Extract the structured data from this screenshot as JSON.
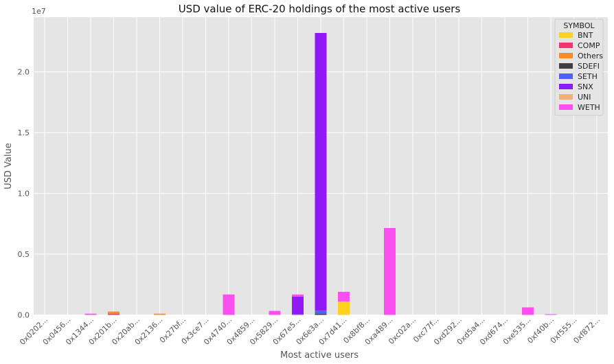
{
  "chart_data": {
    "type": "bar",
    "stacked": true,
    "title": "USD value of ERC-20 holdings of the most active users",
    "xlabel": "Most active users",
    "ylabel": "USD Value",
    "y_scale_label": "1e7",
    "ylim": [
      0,
      24500000
    ],
    "yticks": [
      0,
      5000000,
      10000000,
      15000000,
      20000000
    ],
    "ytick_labels": [
      "0.0",
      "0.5",
      "1.0",
      "1.5",
      "2.0"
    ],
    "grid": true,
    "legend_title": "SYMBOL",
    "legend_position": "top-right",
    "categories": [
      "0x0202...",
      "0x0456...",
      "0x1344...",
      "0x201b...",
      "0x20ab...",
      "0x2136...",
      "0x27bf...",
      "0x3ce7...",
      "0x4740...",
      "0x4859...",
      "0x5829...",
      "0x67e5...",
      "0x6e3a...",
      "0x7d41...",
      "0x8bf8...",
      "0xa489...",
      "0xc02a...",
      "0xc77f...",
      "0xd292...",
      "0xd5a4...",
      "0xd674...",
      "0xe535...",
      "0xf40b...",
      "0xf555...",
      "0xf872..."
    ],
    "series": [
      {
        "name": "BNT",
        "color": "#ffd21f",
        "values": [
          0,
          0,
          0,
          0,
          0,
          0,
          0,
          0,
          0,
          0,
          0,
          0,
          0,
          1100000,
          0,
          0,
          0,
          0,
          0,
          0,
          0,
          0,
          0,
          0,
          0
        ]
      },
      {
        "name": "COMP",
        "color": "#f5316e",
        "values": [
          0,
          0,
          0,
          100000,
          0,
          0,
          0,
          0,
          0,
          0,
          0,
          0,
          0,
          0,
          0,
          0,
          0,
          0,
          0,
          0,
          0,
          0,
          0,
          0,
          0
        ]
      },
      {
        "name": "Others",
        "color": "#fb8b24",
        "values": [
          0,
          0,
          0,
          150000,
          0,
          100000,
          0,
          0,
          0,
          0,
          0,
          0,
          0,
          0,
          0,
          0,
          0,
          0,
          0,
          0,
          0,
          0,
          0,
          0,
          0
        ]
      },
      {
        "name": "SDEFI",
        "color": "#3f3f3f",
        "values": [
          0,
          0,
          0,
          0,
          0,
          0,
          0,
          0,
          0,
          0,
          0,
          0,
          100000,
          0,
          0,
          0,
          0,
          0,
          0,
          0,
          0,
          0,
          0,
          0,
          0
        ]
      },
      {
        "name": "SETH",
        "color": "#4f61f0",
        "values": [
          0,
          0,
          0,
          0,
          0,
          0,
          0,
          0,
          0,
          0,
          0,
          50000,
          250000,
          0,
          0,
          0,
          0,
          0,
          0,
          0,
          0,
          0,
          0,
          0,
          0
        ]
      },
      {
        "name": "SNX",
        "color": "#9119f5",
        "values": [
          0,
          0,
          0,
          0,
          0,
          0,
          0,
          0,
          0,
          0,
          0,
          1450000,
          22850000,
          0,
          0,
          0,
          0,
          0,
          0,
          0,
          0,
          0,
          0,
          0,
          0
        ]
      },
      {
        "name": "UNI",
        "color": "#f0b07c",
        "values": [
          0,
          0,
          0,
          50000,
          0,
          0,
          0,
          0,
          0,
          0,
          0,
          0,
          0,
          0,
          0,
          0,
          0,
          0,
          0,
          0,
          0,
          0,
          0,
          0,
          0
        ]
      },
      {
        "name": "WETH",
        "color": "#fb4ff0",
        "values": [
          0,
          0,
          100000,
          0,
          0,
          0,
          0,
          0,
          1680000,
          0,
          330000,
          180000,
          0,
          800000,
          0,
          7150000,
          0,
          0,
          0,
          0,
          0,
          620000,
          60000,
          0,
          0
        ]
      }
    ]
  }
}
